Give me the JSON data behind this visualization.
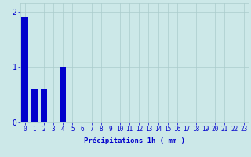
{
  "hours": [
    0,
    1,
    2,
    3,
    4,
    5,
    6,
    7,
    8,
    9,
    10,
    11,
    12,
    13,
    14,
    15,
    16,
    17,
    18,
    19,
    20,
    21,
    22,
    23
  ],
  "values": [
    1.9,
    0.6,
    0.6,
    0.0,
    1.0,
    0.0,
    0.0,
    0.0,
    0.0,
    0.0,
    0.0,
    0.0,
    0.0,
    0.0,
    0.0,
    0.0,
    0.0,
    0.0,
    0.0,
    0.0,
    0.0,
    0.0,
    0.0,
    0.0
  ],
  "bar_color": "#0000cc",
  "bg_color": "#cce8e8",
  "grid_color": "#aacccc",
  "xlabel": "Précipitations 1h ( mm )",
  "ylim": [
    0,
    2.15
  ],
  "yticks": [
    0,
    1,
    2
  ],
  "tick_color": "#0000cc",
  "bar_width": 0.7,
  "tick_fontsize": 5.5,
  "xlabel_fontsize": 6.5
}
